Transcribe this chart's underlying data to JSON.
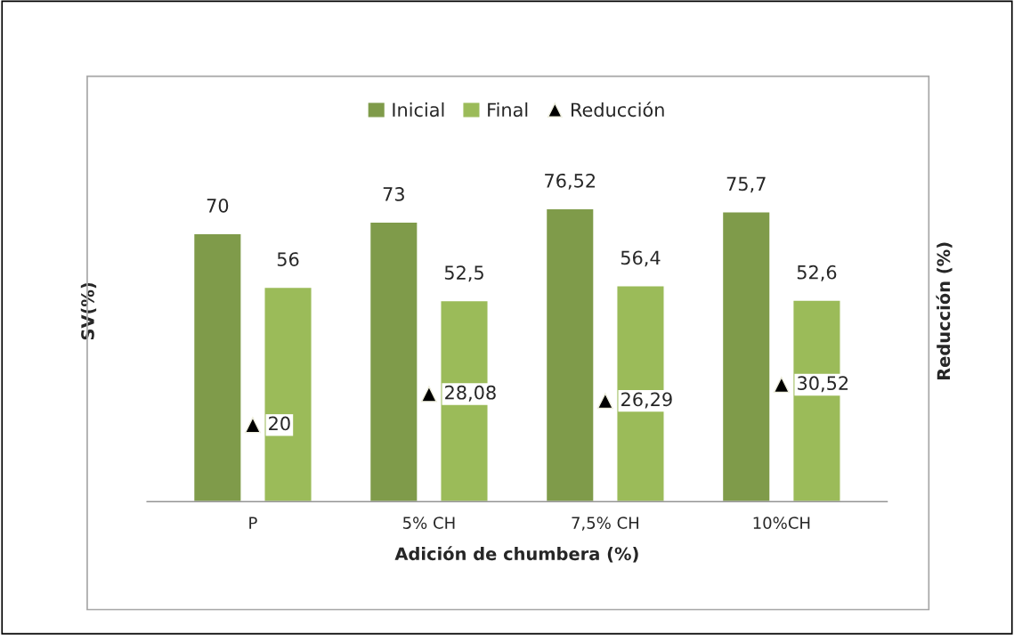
{
  "chart_data": {
    "type": "bar",
    "categories": [
      "P",
      "5% CH",
      "7,5% CH",
      "10%CH"
    ],
    "xlabel": "Adición de chumbera (%)",
    "ylabel": "SV(%)",
    "y2label": "Reducción (%)",
    "series": [
      {
        "name": "Inicial",
        "color": "#7f9b4a",
        "values": [
          70,
          73,
          76.52,
          75.7
        ],
        "value_labels": [
          "70",
          "73",
          "76,52",
          "75,7"
        ]
      },
      {
        "name": "Final",
        "color": "#9bbb59",
        "values": [
          56,
          52.5,
          56.4,
          52.6
        ],
        "value_labels": [
          "56",
          "52,5",
          "56,4",
          "52,6"
        ]
      },
      {
        "name": "Reducción",
        "type": "scatter",
        "color": "#000000",
        "values": [
          20,
          28.08,
          26.29,
          30.52
        ],
        "value_labels": [
          "20",
          "28,08",
          "26,29",
          "30,52"
        ]
      }
    ],
    "marker": "triangle",
    "tick_labels": "x",
    "grid": false,
    "legend": "top"
  }
}
